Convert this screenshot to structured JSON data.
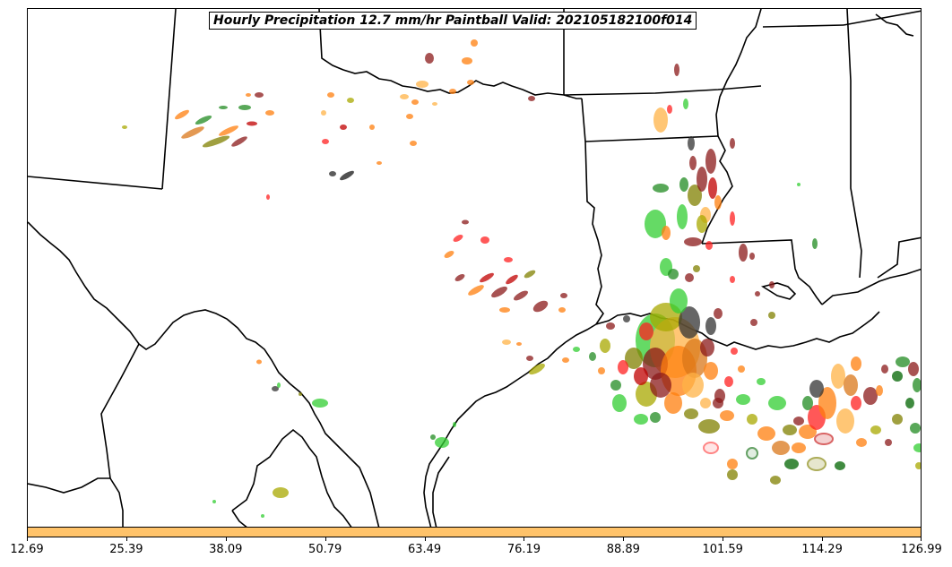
{
  "title": "Hourly Precipitation 12.7 mm/hr Paintball Valid: 202105182100f014",
  "colorbar": {
    "color": "#ffc36a",
    "ticks": [
      "12.69",
      "25.39",
      "38.09",
      "50.79",
      "63.49",
      "76.19",
      "88.89",
      "101.59",
      "114.29",
      "126.99"
    ]
  },
  "member_colors": [
    "#d9771a",
    "#ff7f0e",
    "#ffb347",
    "#ff2020",
    "#c00000",
    "#8b1a1a",
    "#a8a800",
    "#808000",
    "#228b22",
    "#32cd32",
    "#006400",
    "#333333"
  ]
}
